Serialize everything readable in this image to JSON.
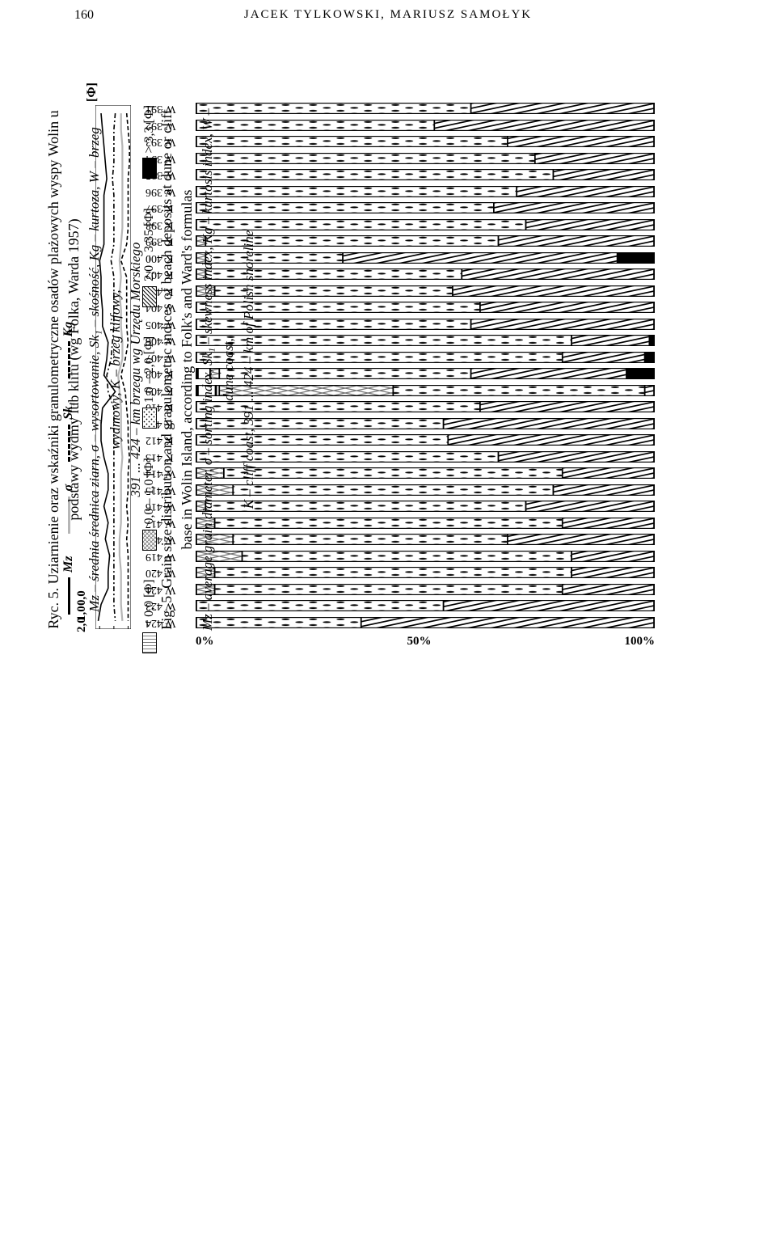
{
  "page": {
    "number": "160",
    "authors": "JACEK TYLKOWSKI, MARIUSZ SAMOŁYK"
  },
  "barchart": {
    "axis_labels": [
      "0%",
      "50%",
      "100%"
    ],
    "legend": [
      {
        "label": "< 0,0 [Φ]",
        "pattern": "lines"
      },
      {
        "label": "0,0 – 1,0 [Φ]",
        "pattern": "cross"
      },
      {
        "label": "1,0 – 2,0 [Φ]",
        "pattern": "dots"
      },
      {
        "label": "2,0 – 3,35 [Φ]",
        "pattern": "diag"
      },
      {
        "label": "> 3,3 [Φ]",
        "pattern": "solid"
      }
    ],
    "rows": [
      {
        "km": "391",
        "type": "W",
        "segs": [
          0,
          0,
          60,
          40,
          0
        ]
      },
      {
        "km": "392",
        "type": "W",
        "segs": [
          0,
          0,
          52,
          48,
          0
        ]
      },
      {
        "km": "393",
        "type": "W",
        "segs": [
          0,
          0,
          68,
          32,
          0
        ]
      },
      {
        "km": "394",
        "type": "W",
        "segs": [
          0,
          0,
          74,
          26,
          0
        ]
      },
      {
        "km": "395",
        "type": "W",
        "segs": [
          0,
          0,
          78,
          22,
          0
        ]
      },
      {
        "km": "396",
        "type": "W",
        "segs": [
          0,
          0,
          70,
          30,
          0
        ]
      },
      {
        "km": "397",
        "type": "K",
        "segs": [
          0,
          0,
          65,
          35,
          0
        ]
      },
      {
        "km": "398",
        "type": "K",
        "segs": [
          0,
          0,
          72,
          28,
          0
        ]
      },
      {
        "km": "399",
        "type": "K",
        "segs": [
          0,
          2,
          64,
          34,
          0
        ]
      },
      {
        "km": "400",
        "type": "K",
        "segs": [
          0,
          2,
          30,
          60,
          8
        ]
      },
      {
        "km": "402",
        "type": "K",
        "segs": [
          0,
          2,
          56,
          42,
          0
        ]
      },
      {
        "km": "403",
        "type": "K",
        "segs": [
          0,
          4,
          52,
          44,
          0
        ]
      },
      {
        "km": "404",
        "type": "W",
        "segs": [
          0,
          0,
          62,
          38,
          0
        ]
      },
      {
        "km": "405",
        "type": "W",
        "segs": [
          0,
          0,
          60,
          40,
          0
        ]
      },
      {
        "km": "406",
        "type": "W",
        "segs": [
          0,
          0,
          82,
          17,
          1
        ]
      },
      {
        "km": "407",
        "type": "W",
        "segs": [
          0,
          0,
          80,
          18,
          2
        ]
      },
      {
        "km": "408",
        "type": "K",
        "segs": [
          3,
          2,
          55,
          34,
          6
        ]
      },
      {
        "km": "409",
        "type": "K",
        "segs": [
          5,
          38,
          55,
          2,
          0
        ]
      },
      {
        "km": "410",
        "type": "K",
        "segs": [
          0,
          0,
          62,
          38,
          0
        ]
      },
      {
        "km": "411",
        "type": "K",
        "segs": [
          0,
          0,
          54,
          46,
          0
        ]
      },
      {
        "km": "412",
        "type": "K",
        "segs": [
          0,
          0,
          55,
          45,
          0
        ]
      },
      {
        "km": "413",
        "type": "K",
        "segs": [
          0,
          0,
          66,
          34,
          0
        ]
      },
      {
        "km": "414",
        "type": "W",
        "segs": [
          0,
          6,
          74,
          20,
          0
        ]
      },
      {
        "km": "415",
        "type": "W",
        "segs": [
          0,
          8,
          70,
          22,
          0
        ]
      },
      {
        "km": "416",
        "type": "W",
        "segs": [
          0,
          2,
          70,
          28,
          0
        ]
      },
      {
        "km": "417",
        "type": "W",
        "segs": [
          0,
          4,
          76,
          20,
          0
        ]
      },
      {
        "km": "418",
        "type": "W",
        "segs": [
          0,
          8,
          60,
          32,
          0
        ]
      },
      {
        "km": "419",
        "type": "W",
        "segs": [
          0,
          10,
          72,
          18,
          0
        ]
      },
      {
        "km": "420",
        "type": "W",
        "segs": [
          0,
          4,
          78,
          18,
          0
        ]
      },
      {
        "km": "421",
        "type": "W",
        "segs": [
          0,
          4,
          76,
          20,
          0
        ]
      },
      {
        "km": "423",
        "type": "W",
        "segs": [
          0,
          0,
          54,
          46,
          0
        ]
      },
      {
        "km": "424",
        "type": "W",
        "segs": [
          0,
          0,
          36,
          64,
          0
        ]
      }
    ]
  },
  "linechart": {
    "y_label": "[Φ]",
    "ticks": [
      "0,0",
      "1,0",
      "2,0"
    ],
    "series": [
      {
        "name": "Mz",
        "dash": "solid",
        "color": "#000000",
        "y": [
          1.9,
          1.8,
          1.7,
          1.6,
          1.5,
          1.7,
          1.7,
          1.7,
          1.7,
          2.0,
          1.9,
          1.9,
          1.8,
          1.8,
          1.4,
          1.5,
          1.7,
          0.9,
          1.8,
          1.9,
          1.9,
          1.7,
          1.4,
          1.4,
          1.7,
          1.4,
          1.6,
          1.3,
          1.4,
          1.4,
          1.9,
          2.1
        ]
      },
      {
        "name": "σ",
        "dash": "solid",
        "color": "#b6b6b6",
        "y": [
          0.5,
          0.5,
          0.4,
          0.4,
          0.4,
          0.4,
          0.4,
          0.4,
          0.5,
          0.6,
          0.5,
          0.6,
          0.5,
          0.5,
          0.4,
          0.4,
          0.7,
          0.6,
          0.5,
          0.5,
          0.5,
          0.4,
          0.5,
          0.5,
          0.5,
          0.5,
          0.6,
          0.6,
          0.5,
          0.5,
          0.5,
          0.4
        ]
      },
      {
        "name": "Sk1",
        "dash": "dash",
        "color": "#000000",
        "y": [
          0.1,
          0.0,
          -0.1,
          -0.1,
          0.0,
          0.0,
          0.0,
          0.0,
          0.1,
          0.5,
          0.1,
          0.1,
          0.1,
          0.1,
          0.0,
          0.2,
          0.5,
          0.2,
          0.1,
          0.0,
          0.0,
          -0.1,
          0.0,
          0.0,
          0.1,
          0.0,
          0.1,
          0.0,
          0.0,
          0.0,
          0.0,
          0.0
        ]
      },
      {
        "name": "Kg",
        "dash": "dashdot",
        "color": "#000000",
        "y": [
          0.9,
          1.0,
          1.0,
          1.0,
          1.1,
          1.0,
          1.0,
          1.0,
          1.0,
          1.2,
          1.0,
          1.0,
          1.0,
          1.0,
          1.1,
          1.2,
          1.5,
          1.4,
          1.0,
          1.0,
          1.0,
          1.0,
          1.0,
          1.0,
          1.0,
          1.0,
          1.0,
          1.0,
          1.0,
          1.0,
          1.0,
          0.9
        ]
      }
    ]
  },
  "captions": {
    "pl_title": "Ryc. 5. Uziarnienie oraz wskaźniki granulometryczne osadów plażowych wyspy Wolin u podstawy wydmy lub klifu (wg Folka, Warda 1957)",
    "pl_sub1": "Mz – średnia średnica ziarn, σ – wysortowanie, Sk₁ – skośność, Kg – kurtoza, W – brzeg wydmowy, K – brzeg klifowy,",
    "pl_sub2": "391 ... 424 – km brzegu wg Urzędu Morskiego",
    "en_title": "Fig. 5. Grain size distribution and granulometric indices of beach deposits at dune or cliff base in Wolin Island, according to Folk's and Ward's formulas",
    "en_sub1": "Mz – average grain diameter, σ – sorting index, Sk₁ – skewness index, Kg – kurtosis index, W – dune coast,",
    "en_sub2": "K – cliff coast, 391 ... 424 – km of Polish shoreline"
  }
}
